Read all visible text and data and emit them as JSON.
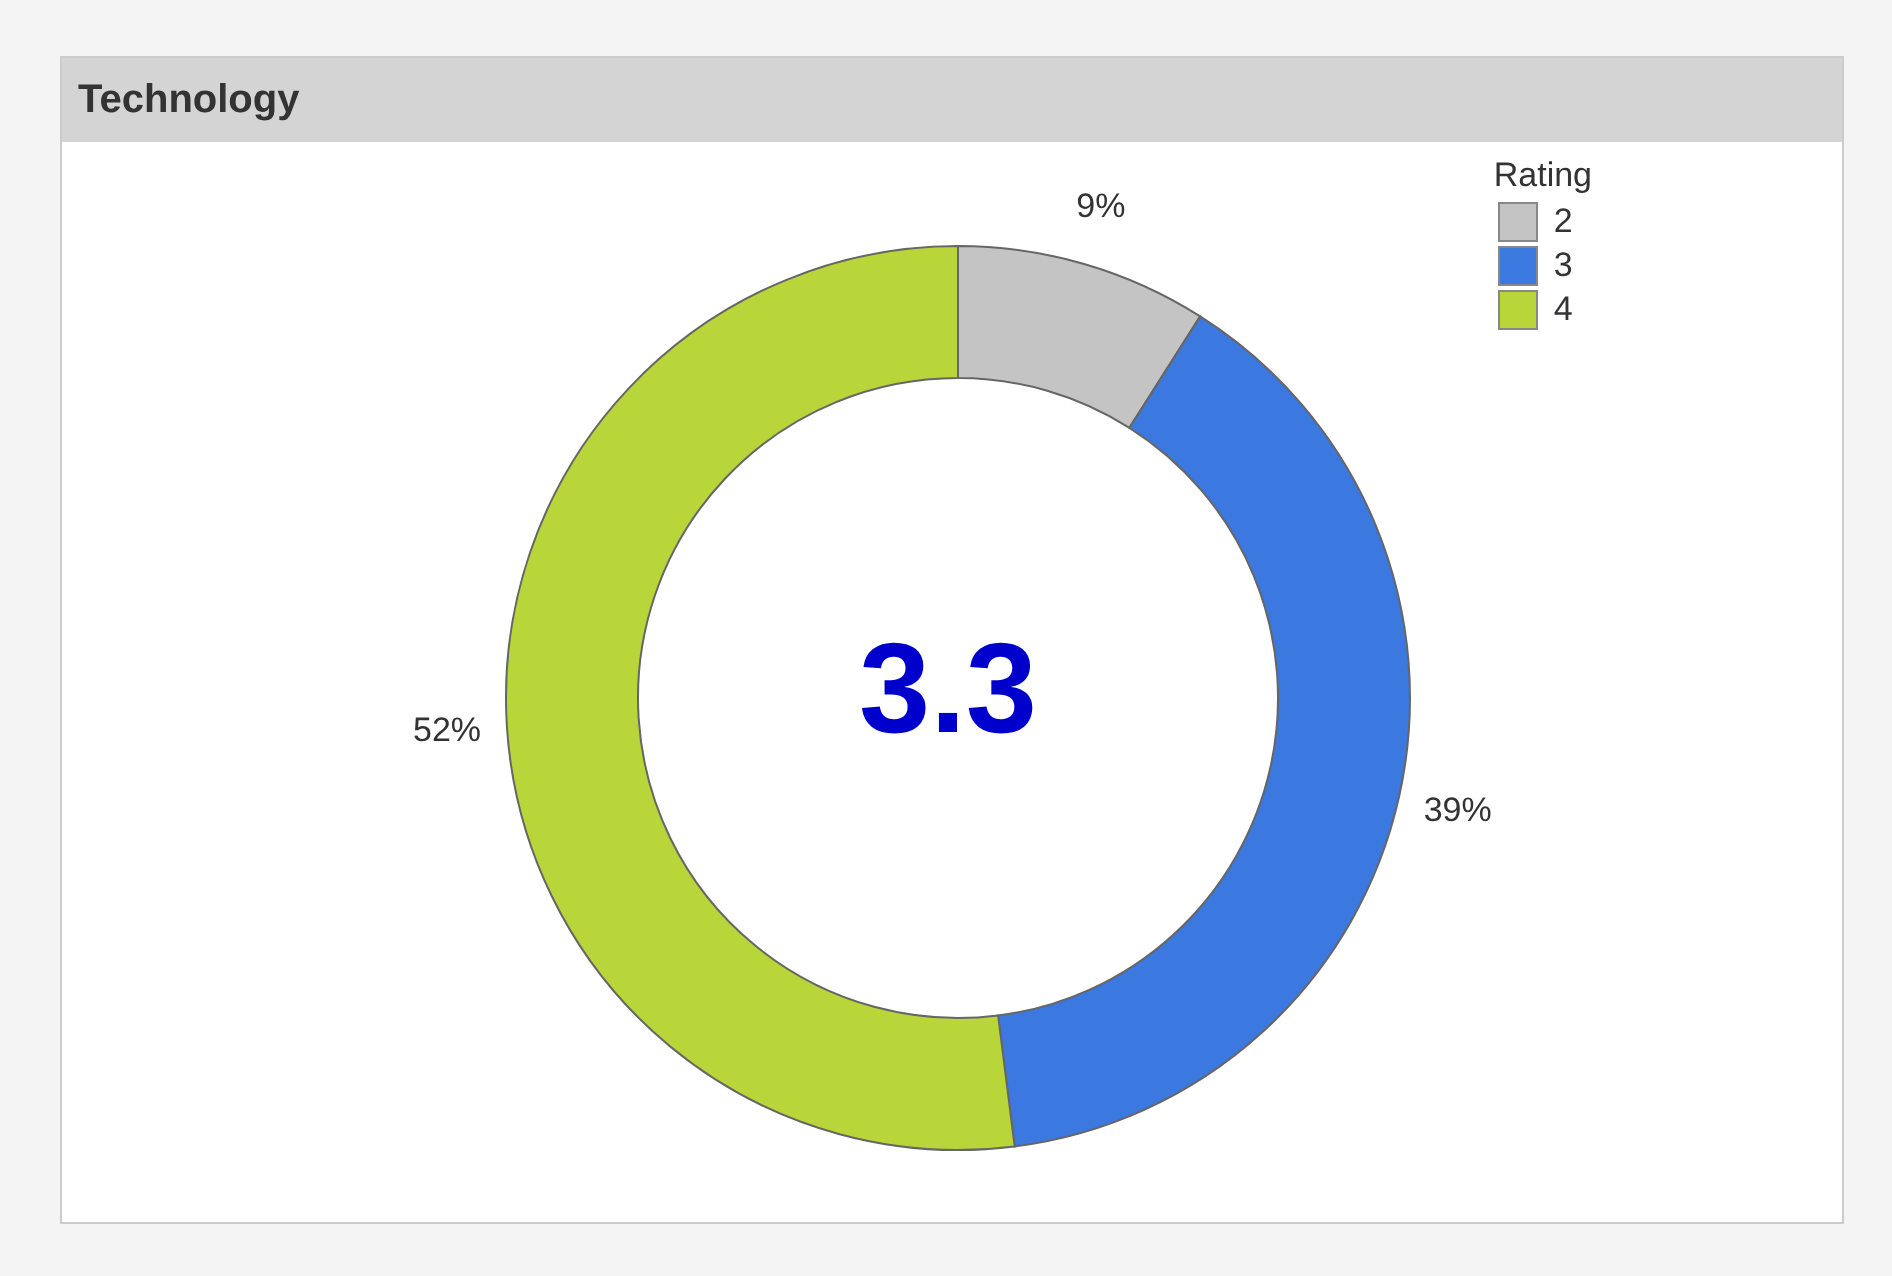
{
  "chart_data": {
    "type": "donut",
    "title": "Technology",
    "legend_title": "Rating",
    "categories": [
      "2",
      "3",
      "4"
    ],
    "values": [
      9,
      39,
      52
    ],
    "colors": [
      "#c4c4c4",
      "#3b78e0",
      "#b8d63a"
    ],
    "value_labels": [
      "9%",
      "39%",
      "52%"
    ],
    "annotations": [
      "3.3"
    ],
    "legend": "top right"
  }
}
